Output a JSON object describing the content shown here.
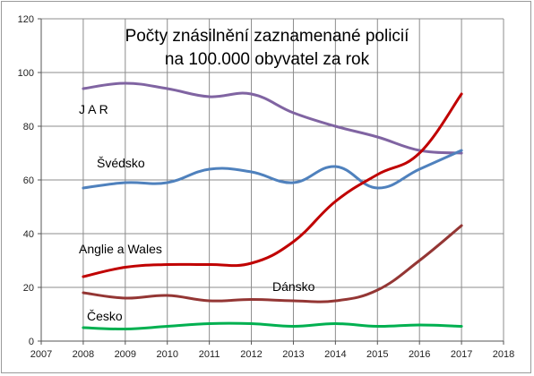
{
  "chart_data": {
    "type": "line",
    "title_lines": [
      "Počty znásilnění zaznamenané policií",
      "na 100.000 obyvatel  za rok"
    ],
    "xlabel": "",
    "ylabel": "",
    "xlim": [
      2007,
      2018
    ],
    "ylim": [
      0,
      120
    ],
    "x_ticks": [
      2007,
      2008,
      2009,
      2010,
      2011,
      2012,
      2013,
      2014,
      2015,
      2016,
      2017,
      2018
    ],
    "y_ticks": [
      0,
      20,
      40,
      60,
      80,
      100,
      120
    ],
    "grid": true,
    "x": [
      2008,
      2009,
      2010,
      2011,
      2012,
      2013,
      2014,
      2015,
      2016,
      2017
    ],
    "series": [
      {
        "name": "J A R",
        "color": "#8064a2",
        "values": [
          94,
          96,
          94,
          91,
          92,
          85,
          80,
          76,
          71,
          70
        ]
      },
      {
        "name": "Švédsko",
        "color": "#4f81bd",
        "values": [
          57,
          59,
          59,
          64,
          63,
          59,
          65,
          57,
          64,
          71
        ]
      },
      {
        "name": "Anglie a Wales",
        "color": "#c00000",
        "values": [
          24,
          27.5,
          28.5,
          28.5,
          29,
          37,
          52,
          62,
          70,
          92
        ]
      },
      {
        "name": "Dánsko",
        "color": "#943634",
        "values": [
          18,
          16,
          17,
          15,
          15.5,
          15,
          15,
          19,
          30,
          43
        ]
      },
      {
        "name": "Česko",
        "color": "#00b050",
        "values": [
          5,
          4.5,
          5.5,
          6.5,
          6.5,
          5.5,
          6.5,
          5.5,
          6,
          5.5
        ]
      }
    ]
  }
}
